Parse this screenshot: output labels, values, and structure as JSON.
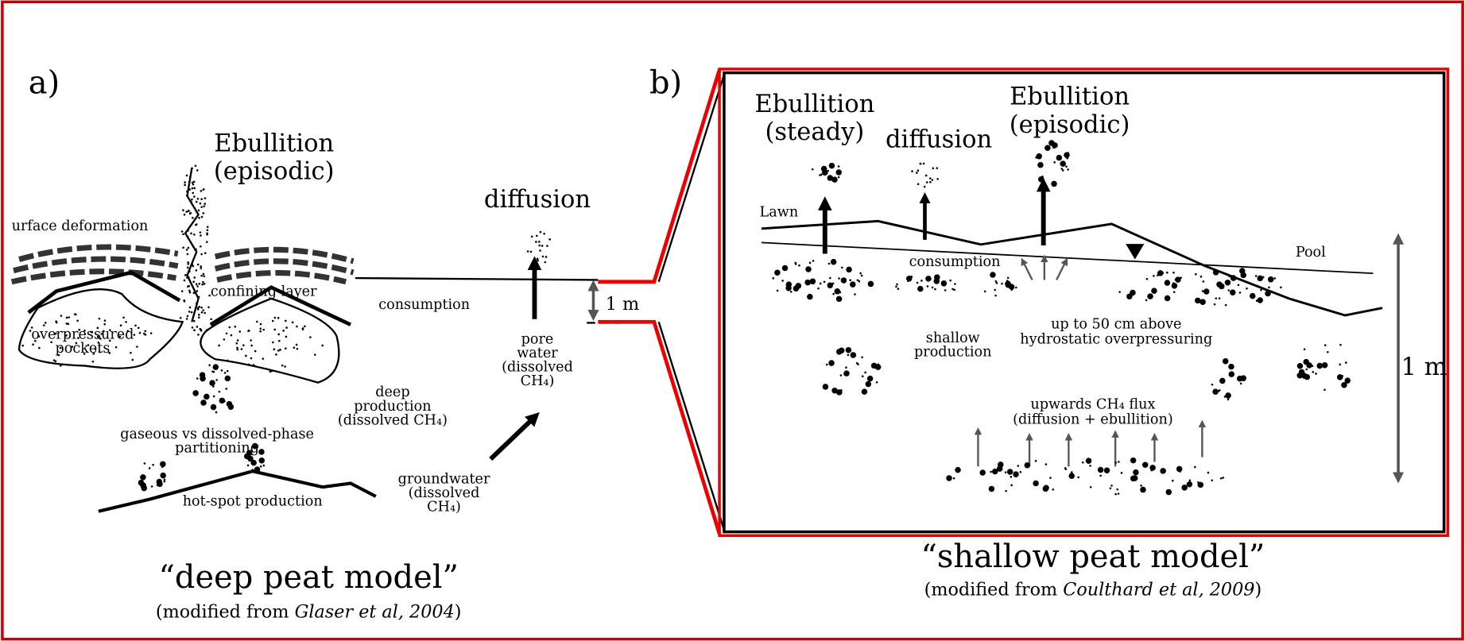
{
  "panel_a": {
    "label": "a)",
    "ebullition": [
      "Ebullition",
      "(episodic)"
    ],
    "diffusion": "diffusion",
    "surface_deformation": "urface deformation",
    "confining_layer": "confining layer",
    "consumption": "consumption",
    "scale": "1 m",
    "overpressured_pockets": [
      "overpressured",
      "pockets"
    ],
    "pore_water": [
      "pore",
      "water",
      "(dissolved",
      "CH₄)"
    ],
    "deep_production": [
      "deep",
      "production",
      "(dissolved CH₄)"
    ],
    "partitioning": [
      "gaseous vs dissolved-phase",
      "partitioning"
    ],
    "hot_spot": "hot-spot production",
    "groundwater": [
      "groundwater",
      "(dissolved",
      "CH₄)"
    ],
    "caption": {
      "title": "“deep peat model”",
      "prefix": "(modified from ",
      "citation": "Glaser et al, 2004",
      "suffix": ")"
    }
  },
  "panel_b": {
    "label": "b)",
    "ebullition_steady": [
      "Ebullition",
      "(steady)"
    ],
    "diffusion": "diffusion",
    "ebullition_episodic": [
      "Ebullition",
      "(episodic)"
    ],
    "lawn": "Lawn",
    "pool": "Pool",
    "consumption": "consumption",
    "shallow_production": [
      "shallow",
      "production"
    ],
    "overpressuring": [
      "up to 50 cm above",
      "hydrostatic overpressuring"
    ],
    "flux": [
      "upwards CH₄ flux",
      "(diffusion + ebullition)"
    ],
    "scale": "1 m",
    "caption": {
      "title": "“shallow peat model”",
      "prefix": "(modified from ",
      "citation": "Coulthard et al, 2009",
      "suffix": ")"
    }
  }
}
